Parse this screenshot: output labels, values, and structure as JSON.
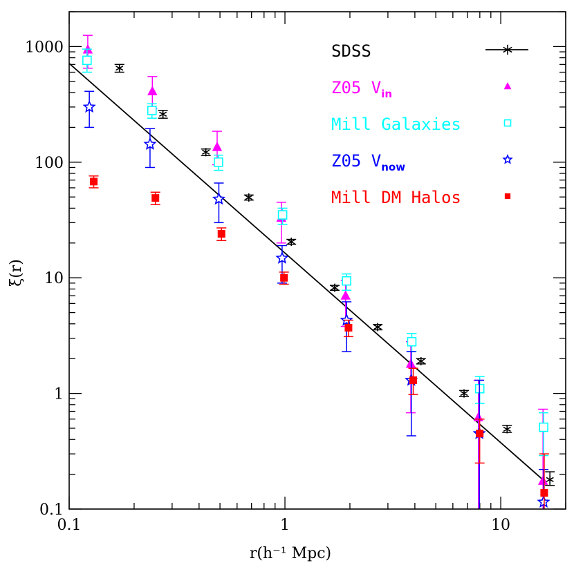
{
  "chart_data": {
    "type": "scatter",
    "xlabel": "r(h⁻¹ Mpc)",
    "ylabel": "ξ(r)",
    "xscale": "log",
    "yscale": "log",
    "xlim": [
      0.1,
      20
    ],
    "ylim": [
      0.1,
      2000
    ],
    "xticks": [
      {
        "v": 0.1,
        "label": "0.1"
      },
      {
        "v": 1,
        "label": "1"
      },
      {
        "v": 10,
        "label": "10"
      }
    ],
    "yticks": [
      {
        "v": 0.1,
        "label": "0.1"
      },
      {
        "v": 1,
        "label": "1"
      },
      {
        "v": 10,
        "label": "10"
      },
      {
        "v": 100,
        "label": "100"
      },
      {
        "v": 1000,
        "label": "1000"
      }
    ],
    "legend_position": "top-right",
    "powerlaw_fit": {
      "r0_hinv_mpc": 5.5,
      "gamma": 1.64,
      "x_range": [
        0.1,
        15.8
      ],
      "color": "#000000"
    },
    "series": [
      {
        "name": "SDSS",
        "name_sub": "",
        "marker": "asterisk",
        "color": "#000000",
        "points": [
          {
            "x": 0.171,
            "y": 650,
            "lo": 600,
            "hi": 700
          },
          {
            "x": 0.272,
            "y": 260,
            "lo": 240,
            "hi": 280
          },
          {
            "x": 0.43,
            "y": 122,
            "lo": 114,
            "hi": 130
          },
          {
            "x": 0.68,
            "y": 49.5,
            "lo": 47,
            "hi": 52
          },
          {
            "x": 1.07,
            "y": 20.5,
            "lo": 19.5,
            "hi": 21.5
          },
          {
            "x": 1.7,
            "y": 8.2,
            "lo": 7.8,
            "hi": 8.6
          },
          {
            "x": 2.69,
            "y": 3.75,
            "lo": 3.55,
            "hi": 3.95
          },
          {
            "x": 4.27,
            "y": 1.9,
            "lo": 1.8,
            "hi": 2.0
          },
          {
            "x": 6.76,
            "y": 1.0,
            "lo": 0.94,
            "hi": 1.06
          },
          {
            "x": 10.7,
            "y": 0.49,
            "lo": 0.46,
            "hi": 0.53
          },
          {
            "x": 16.9,
            "y": 0.18,
            "lo": 0.16,
            "hi": 0.21
          }
        ]
      },
      {
        "name": "Z05 V",
        "name_sub": "in",
        "marker": "triangle",
        "color": "#ff00ff",
        "points": [
          {
            "x": 0.122,
            "y": 940,
            "lo": 650,
            "hi": 1250
          },
          {
            "x": 0.243,
            "y": 410,
            "lo": 290,
            "hi": 550
          },
          {
            "x": 0.485,
            "y": 135,
            "lo": 95,
            "hi": 185
          },
          {
            "x": 0.962,
            "y": 33,
            "lo": 20,
            "hi": 45
          },
          {
            "x": 1.91,
            "y": 7.0,
            "lo": 3.8,
            "hi": 9.5
          },
          {
            "x": 3.83,
            "y": 1.8,
            "lo": 0.68,
            "hi": 2.8
          },
          {
            "x": 7.88,
            "y": 0.62,
            "lo": 0.1,
            "hi": 1.3
          },
          {
            "x": 15.7,
            "y": 0.175,
            "lo": 0.1,
            "hi": 0.73
          }
        ]
      },
      {
        "name": "Mill Galaxies",
        "name_sub": "",
        "marker": "open-square",
        "color": "#00ffff",
        "points": [
          {
            "x": 0.121,
            "y": 760,
            "lo": 600,
            "hi": 950
          },
          {
            "x": 0.242,
            "y": 280,
            "lo": 240,
            "hi": 320
          },
          {
            "x": 0.492,
            "y": 100,
            "lo": 85,
            "hi": 115
          },
          {
            "x": 0.975,
            "y": 35,
            "lo": 29,
            "hi": 40
          },
          {
            "x": 1.93,
            "y": 9.4,
            "lo": 7.8,
            "hi": 10.8
          },
          {
            "x": 3.87,
            "y": 2.8,
            "lo": 2.3,
            "hi": 3.3
          },
          {
            "x": 7.99,
            "y": 1.1,
            "lo": 0.82,
            "hi": 1.4
          },
          {
            "x": 15.8,
            "y": 0.51,
            "lo": 0.29,
            "hi": 0.68
          }
        ]
      },
      {
        "name": "Z05 V",
        "name_sub": "now",
        "marker": "open-star",
        "color": "#0000ff",
        "points": [
          {
            "x": 0.124,
            "y": 300,
            "lo": 200,
            "hi": 410
          },
          {
            "x": 0.237,
            "y": 143,
            "lo": 90,
            "hi": 195
          },
          {
            "x": 0.494,
            "y": 48,
            "lo": 30,
            "hi": 66
          },
          {
            "x": 0.97,
            "y": 14.8,
            "lo": 9.0,
            "hi": 19
          },
          {
            "x": 1.93,
            "y": 4.3,
            "lo": 2.3,
            "hi": 6.2
          },
          {
            "x": 3.85,
            "y": 1.3,
            "lo": 0.43,
            "hi": 2.3
          },
          {
            "x": 7.96,
            "y": 0.45,
            "lo": 0.1,
            "hi": 1.3
          },
          {
            "x": 15.8,
            "y": 0.115,
            "lo": 0.1,
            "hi": 0.22
          }
        ]
      },
      {
        "name": "Mill DM Halos",
        "name_sub": "",
        "marker": "filled-square",
        "color": "#ff0000",
        "points": [
          {
            "x": 0.13,
            "y": 68,
            "lo": 60,
            "hi": 76
          },
          {
            "x": 0.251,
            "y": 49,
            "lo": 43,
            "hi": 55
          },
          {
            "x": 0.508,
            "y": 24,
            "lo": 21,
            "hi": 27
          },
          {
            "x": 0.99,
            "y": 10,
            "lo": 8.8,
            "hi": 11.2
          },
          {
            "x": 1.97,
            "y": 3.7,
            "lo": 3.1,
            "hi": 4.3
          },
          {
            "x": 3.93,
            "y": 1.3,
            "lo": 0.98,
            "hi": 1.65
          },
          {
            "x": 7.99,
            "y": 0.45,
            "lo": 0.25,
            "hi": 0.6
          },
          {
            "x": 15.9,
            "y": 0.138,
            "lo": 0.1,
            "hi": 0.3
          }
        ]
      }
    ]
  }
}
